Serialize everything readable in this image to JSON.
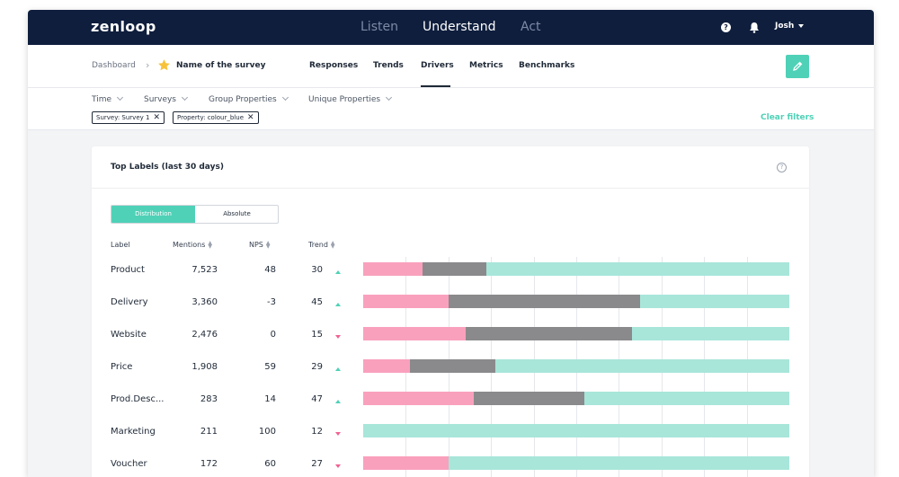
{
  "app": {
    "logo": "zenloop"
  },
  "topnav": {
    "items": [
      {
        "label": "Listen",
        "active": false
      },
      {
        "label": "Understand",
        "active": true
      },
      {
        "label": "Act",
        "active": false
      }
    ],
    "user": "Josh"
  },
  "breadcrumb": {
    "root": "Dashboard",
    "survey": "Name of the survey"
  },
  "subtabs": [
    {
      "label": "Responses"
    },
    {
      "label": "Trends"
    },
    {
      "label": "Drivers",
      "active": true
    },
    {
      "label": "Metrics"
    },
    {
      "label": "Benchmarks"
    }
  ],
  "filters": {
    "dropdowns": [
      "Time",
      "Surveys",
      "Group Properties",
      "Unique Properties"
    ],
    "chips": [
      "Survey: Survey 1",
      "Property: colour_blue"
    ],
    "clear_label": "Clear filters"
  },
  "card": {
    "title": "Top Labels (last 30 days)",
    "toggle": {
      "active": "Distribution",
      "inactive": "Absolute"
    },
    "columns": {
      "label": "Label",
      "mentions": "Mentions",
      "nps": "NPS",
      "trend": "Trend"
    }
  },
  "colors": {
    "negative": "#f9a0bd",
    "neutral": "#8a8a8c",
    "positive": "#a8e6da",
    "accent": "#4fd1b7"
  },
  "chart_data": {
    "type": "bar",
    "stacked": true,
    "normalized": true,
    "categories": [
      "Product",
      "Delivery",
      "Website",
      "Price",
      "Prod.Desc...",
      "Marketing",
      "Voucher"
    ],
    "mentions": [
      "7,523",
      "3,360",
      "2,476",
      "1,908",
      "283",
      "211",
      "172"
    ],
    "nps": [
      "48",
      "-3",
      "0",
      "59",
      "14",
      "100",
      "60"
    ],
    "trend": [
      "30",
      "45",
      "15",
      "29",
      "47",
      "12",
      "27"
    ],
    "trend_direction": [
      "up",
      "up",
      "down",
      "up",
      "up",
      "down",
      "down"
    ],
    "series": [
      {
        "values": [
          14,
          20,
          24,
          11,
          26,
          0,
          20
        ]
      },
      {
        "values": [
          15,
          45,
          39,
          20,
          26,
          0,
          0
        ]
      },
      {
        "values": [
          71,
          35,
          37,
          69,
          48,
          100,
          80
        ]
      }
    ],
    "ylim": [
      0,
      100
    ],
    "grid": true
  }
}
